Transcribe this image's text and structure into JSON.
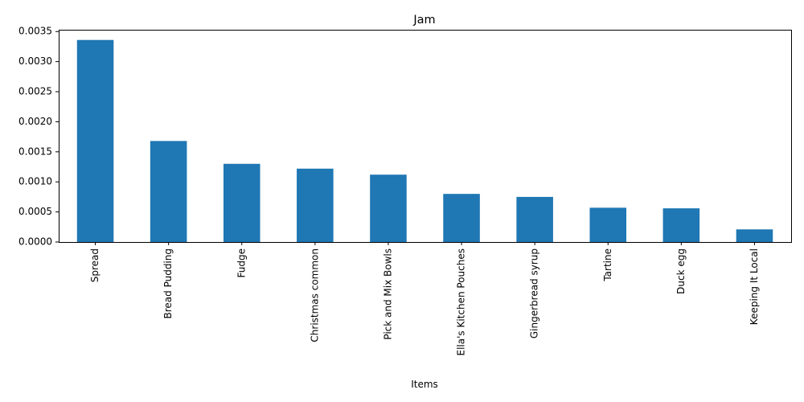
{
  "chart_data": {
    "type": "bar",
    "title": "Jam",
    "xlabel": "Items",
    "ylabel": "",
    "categories": [
      "Spread",
      "Bread Pudding",
      "Fudge",
      "Christmas common",
      "Pick and Mix Bowls",
      "Ella's Kitchen Pouches",
      "Gingerbread syrup",
      "Tartine",
      "Duck egg",
      "Keeping It Local"
    ],
    "values": [
      0.00336,
      0.00168,
      0.0013,
      0.00122,
      0.00112,
      0.0008,
      0.00075,
      0.00057,
      0.00056,
      0.00021
    ],
    "ylim": [
      0,
      0.00353
    ],
    "yticks": [
      0.0,
      0.0005,
      0.001,
      0.0015,
      0.002,
      0.0025,
      0.003,
      0.0035
    ],
    "ytick_labels": [
      "0.0000",
      "0.0005",
      "0.0010",
      "0.0015",
      "0.0020",
      "0.0025",
      "0.0030",
      "0.0035"
    ],
    "bar_color": "#1f77b4",
    "grid": false,
    "legend": false
  }
}
